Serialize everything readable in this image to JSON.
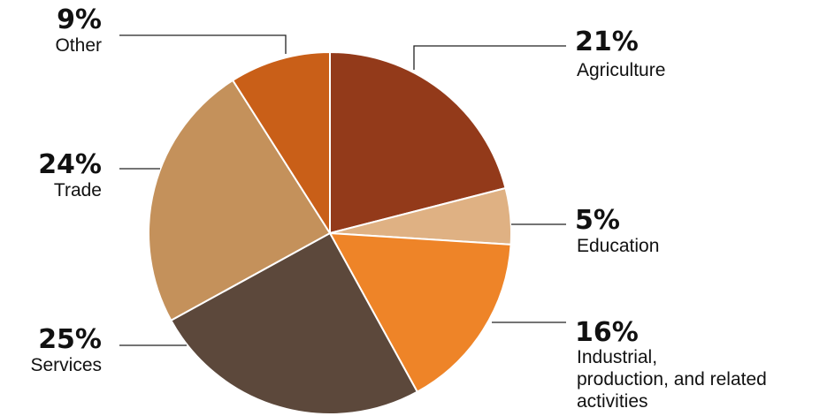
{
  "chart_data": {
    "type": "pie",
    "slices": [
      {
        "pct_label": "21%",
        "label": [
          "Agriculture"
        ],
        "value": 21,
        "color": "#933a1a"
      },
      {
        "pct_label": "5%",
        "label": [
          "Education"
        ],
        "value": 5,
        "color": "#dfb183"
      },
      {
        "pct_label": "16%",
        "label": [
          "Industrial,",
          "production,  and related",
          "activities"
        ],
        "value": 16,
        "color": "#ee8428"
      },
      {
        "pct_label": "25%",
        "label": [
          "Services"
        ],
        "value": 25,
        "color": "#5c483b"
      },
      {
        "pct_label": "24%",
        "label": [
          "Trade"
        ],
        "value": 24,
        "color": "#c4915b"
      },
      {
        "pct_label": "9%",
        "label": [
          "Other"
        ],
        "value": 9,
        "color": "#c95f18"
      }
    ]
  }
}
